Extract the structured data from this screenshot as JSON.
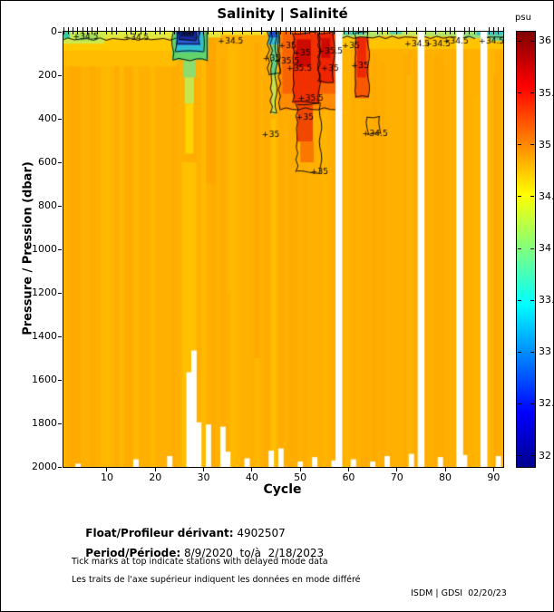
{
  "chart_data": {
    "type": "heatmap",
    "title": "Salinity | Salinité",
    "xlabel": "Cycle",
    "ylabel": "Pressure / Pression (dbar)",
    "x_range": [
      1,
      92
    ],
    "y_range": [
      0,
      2000
    ],
    "x_ticks": [
      10,
      20,
      30,
      40,
      50,
      60,
      70,
      80,
      90
    ],
    "y_ticks": [
      0,
      200,
      400,
      600,
      800,
      1000,
      1200,
      1400,
      1600,
      1800,
      2000
    ],
    "colorbar": {
      "unit": "psu",
      "ticks": [
        36,
        35.5,
        35,
        34.5,
        34,
        33.5,
        33,
        32.5,
        32
      ],
      "clim": [
        31.9,
        36.1
      ],
      "colormap": "jet",
      "stops": [
        [
          "0%",
          "#00008f"
        ],
        [
          "12.5%",
          "#0000ff"
        ],
        [
          "37.5%",
          "#00ffff"
        ],
        [
          "62.5%",
          "#ffff00"
        ],
        [
          "87.5%",
          "#ff0000"
        ],
        [
          "100%",
          "#800000"
        ]
      ]
    },
    "base": {
      "color": "#ffb000",
      "value_psu": 34.85
    },
    "missing_cycles": [
      58,
      75,
      83,
      88
    ],
    "shallow_profiles": [
      {
        "cycle": 4,
        "p": 1985
      },
      {
        "cycle": 16,
        "p": 1965
      },
      {
        "cycle": 23,
        "p": 1950
      },
      {
        "cycle": 27,
        "p": 1565
      },
      {
        "cycle": 28,
        "p": 1465
      },
      {
        "cycle": 29,
        "p": 1795
      },
      {
        "cycle": 31,
        "p": 1805
      },
      {
        "cycle": 34,
        "p": 1815
      },
      {
        "cycle": 35,
        "p": 1930
      },
      {
        "cycle": 39,
        "p": 1960
      },
      {
        "cycle": 44,
        "p": 1925
      },
      {
        "cycle": 46,
        "p": 1915
      },
      {
        "cycle": 50,
        "p": 1975
      },
      {
        "cycle": 53,
        "p": 1955
      },
      {
        "cycle": 57,
        "p": 1970
      },
      {
        "cycle": 61,
        "p": 1965
      },
      {
        "cycle": 65,
        "p": 1975
      },
      {
        "cycle": 68,
        "p": 1950
      },
      {
        "cycle": 73,
        "p": 1940
      },
      {
        "cycle": 79,
        "p": 1955
      },
      {
        "cycle": 84,
        "p": 1945
      },
      {
        "cycle": 91,
        "p": 1950
      }
    ],
    "patches": [
      {
        "c": [
          2.5,
          4.5
        ],
        "p": [
          30,
          2000
        ],
        "color": "#ffaa00"
      },
      {
        "c": [
          8.5,
          9.5
        ],
        "p": [
          50,
          2000
        ],
        "color": "#ffb600"
      },
      {
        "c": [
          13.5,
          15
        ],
        "p": [
          80,
          2000
        ],
        "color": "#ffac00"
      },
      {
        "c": [
          19,
          20
        ],
        "p": [
          60,
          2000
        ],
        "color": "#ffb800"
      },
      {
        "c": [
          25.5,
          28.5
        ],
        "p": [
          600,
          2000
        ],
        "color": "#ffc000"
      },
      {
        "c": [
          30.5,
          32.5
        ],
        "p": [
          30,
          700
        ],
        "color": "#ffa600"
      },
      {
        "c": [
          35,
          36
        ],
        "p": [
          40,
          1200
        ],
        "color": "#ffb800"
      },
      {
        "c": [
          40.5,
          41.5
        ],
        "p": [
          50,
          1500
        ],
        "color": "#ffa800"
      },
      {
        "c": [
          44,
          45
        ],
        "p": [
          400,
          2000
        ],
        "color": "#ffc000"
      },
      {
        "c": [
          59,
          60.5
        ],
        "p": [
          30,
          2000
        ],
        "color": "#ffb400"
      },
      {
        "c": [
          65,
          66
        ],
        "p": [
          100,
          2000
        ],
        "color": "#ffaa00"
      },
      {
        "c": [
          72,
          73
        ],
        "p": [
          200,
          2000
        ],
        "color": "#ffb600"
      },
      {
        "c": [
          79,
          80
        ],
        "p": [
          150,
          2000
        ],
        "color": "#ffac00"
      },
      {
        "c": [
          86,
          87
        ],
        "p": [
          300,
          2000
        ],
        "color": "#ffb400"
      },
      {
        "c": [
          90,
          91
        ],
        "p": [
          200,
          2000
        ],
        "color": "#ffaa00"
      },
      {
        "c": [
          0.5,
          24.5
        ],
        "p": [
          32,
          90
        ],
        "color": "#ffc800"
      },
      {
        "c": [
          0.5,
          24.5
        ],
        "p": [
          90,
          160
        ],
        "color": "#ffbc00"
      },
      {
        "c": [
          58.3,
          92.5
        ],
        "p": [
          24,
          80
        ],
        "color": "#ffc400"
      },
      {
        "c": [
          0.5,
          24.5
        ],
        "p": [
          0,
          32
        ],
        "color": "#e6e63c"
      },
      {
        "c": [
          0.5,
          9.5
        ],
        "p": [
          0,
          55
        ],
        "color": "#cdea4d"
      },
      {
        "c": [
          3.5,
          8
        ],
        "p": [
          8,
          42
        ],
        "color": "#a6e05a"
      },
      {
        "c": [
          0.5,
          2.3
        ],
        "p": [
          0,
          30
        ],
        "color": "#3cc8a0"
      },
      {
        "c": [
          10,
          22
        ],
        "p": [
          0,
          20
        ],
        "color": "#dcea44"
      },
      {
        "c": [
          29.5,
          33.5
        ],
        "p": [
          0,
          26
        ],
        "color": "#e6e63c"
      },
      {
        "c": [
          33.5,
          43
        ],
        "p": [
          0,
          16
        ],
        "color": "#f2dc28"
      },
      {
        "c": [
          23.5,
          31
        ],
        "p": [
          0,
          130
        ],
        "color": "#62d46a"
      },
      {
        "c": [
          24.2,
          30
        ],
        "p": [
          0,
          95
        ],
        "color": "#30bed0"
      },
      {
        "c": [
          24.6,
          29.2
        ],
        "p": [
          0,
          62
        ],
        "color": "#2a62e0"
      },
      {
        "c": [
          24.9,
          28.6
        ],
        "p": [
          0,
          40
        ],
        "color": "#1a2a9a"
      },
      {
        "c": [
          25.2,
          28.0
        ],
        "p": [
          0,
          22
        ],
        "color": "#0a1450"
      },
      {
        "c": [
          25.8,
          28.4
        ],
        "p": [
          130,
          210
        ],
        "color": "#8cdc6e"
      },
      {
        "c": [
          26.1,
          28.0
        ],
        "p": [
          210,
          330
        ],
        "color": "#c6e650"
      },
      {
        "c": [
          26.2,
          27.9
        ],
        "p": [
          330,
          560
        ],
        "color": "#ffd200"
      },
      {
        "c": [
          43.3,
          45.7
        ],
        "p": [
          0,
          60
        ],
        "color": "#34bcd8"
      },
      {
        "c": [
          43.6,
          45.3
        ],
        "p": [
          0,
          26
        ],
        "color": "#2050c8"
      },
      {
        "c": [
          43.9,
          45.1
        ],
        "p": [
          60,
          200
        ],
        "color": "#66d286"
      },
      {
        "c": [
          44.1,
          44.95
        ],
        "p": [
          200,
          380
        ],
        "color": "#c2e455"
      },
      {
        "c": [
          45.6,
          57.7
        ],
        "p": [
          0,
          360
        ],
        "color": "#ff8c00"
      },
      {
        "c": [
          46.3,
          57.5
        ],
        "p": [
          0,
          285
        ],
        "color": "#fa6400"
      },
      {
        "c": [
          48.5,
          54
        ],
        "p": [
          8,
          330
        ],
        "color": "#f13000"
      },
      {
        "c": [
          49.4,
          52.6
        ],
        "p": [
          330,
          505
        ],
        "color": "#f14800"
      },
      {
        "c": [
          50,
          52.8
        ],
        "p": [
          505,
          600
        ],
        "color": "#fa7800"
      },
      {
        "c": [
          53.8,
          57
        ],
        "p": [
          8,
          235
        ],
        "color": "#ee2400"
      },
      {
        "c": [
          49.2,
          52.2
        ],
        "p": [
          35,
          160
        ],
        "color": "#cc0a00"
      },
      {
        "c": [
          54.4,
          56.2
        ],
        "p": [
          30,
          120
        ],
        "color": "#cc0a00"
      },
      {
        "c": [
          61.3,
          64.2
        ],
        "p": [
          8,
          305
        ],
        "color": "#f85800"
      },
      {
        "c": [
          61.8,
          63.6
        ],
        "p": [
          25,
          210
        ],
        "color": "#ee2800"
      },
      {
        "c": [
          58.3,
          66.5
        ],
        "p": [
          0,
          24
        ],
        "color": "#b4e468"
      },
      {
        "c": [
          59,
          63.5
        ],
        "p": [
          0,
          14
        ],
        "color": "#46c8b4"
      },
      {
        "c": [
          66.5,
          74.5
        ],
        "p": [
          0,
          20
        ],
        "color": "#c8e85a"
      },
      {
        "c": [
          68.5,
          71
        ],
        "p": [
          0,
          11
        ],
        "color": "#52ccb0"
      },
      {
        "c": [
          75.5,
          82.5
        ],
        "p": [
          0,
          22
        ],
        "color": "#b4e468"
      },
      {
        "c": [
          83.5,
          92.5
        ],
        "p": [
          0,
          30
        ],
        "color": "#9ade74"
      },
      {
        "c": [
          86.5,
          92.5
        ],
        "p": [
          0,
          16
        ],
        "color": "#3ec4c0"
      },
      {
        "c": [
          89.5,
          92.5
        ],
        "p": [
          16,
          42
        ],
        "color": "#74d694"
      }
    ],
    "contours": [
      {
        "type": "hline",
        "c": [
          0.6,
          24.4
        ],
        "p": [
          34,
          34
        ]
      },
      {
        "type": "box",
        "c": [
          23.6,
          30.9
        ],
        "p": [
          0,
          128
        ]
      },
      {
        "type": "box",
        "c": [
          24.3,
          29.9
        ],
        "p": [
          0,
          93
        ]
      },
      {
        "type": "box",
        "c": [
          24.7,
          29.1
        ],
        "p": [
          0,
          60
        ]
      },
      {
        "type": "box",
        "c": [
          25.0,
          28.5
        ],
        "p": [
          0,
          38
        ]
      },
      {
        "type": "box",
        "c": [
          43.4,
          45.6
        ],
        "p": [
          0,
          195
        ]
      },
      {
        "type": "box",
        "c": [
          44.0,
          45.0
        ],
        "p": [
          0,
          375
        ]
      },
      {
        "type": "box",
        "c": [
          45.7,
          57.6
        ],
        "p": [
          0,
          355
        ]
      },
      {
        "type": "box",
        "c": [
          49.3,
          54.2
        ],
        "p": [
          330,
          645
        ]
      },
      {
        "type": "box",
        "c": [
          48.6,
          53.9
        ],
        "p": [
          5,
          325
        ]
      },
      {
        "type": "box",
        "c": [
          53.9,
          56.9
        ],
        "p": [
          5,
          230
        ]
      },
      {
        "type": "box",
        "c": [
          61.4,
          64.1
        ],
        "p": [
          5,
          300
        ]
      },
      {
        "type": "box",
        "c": [
          63.9,
          66.5
        ],
        "p": [
          390,
          470
        ]
      },
      {
        "type": "hline",
        "c": [
          58.4,
          86.2
        ],
        "p": [
          26,
          26
        ]
      },
      {
        "type": "hline",
        "c": [
          88.6,
          92.4
        ],
        "p": [
          30,
          30
        ]
      }
    ],
    "contour_labels": [
      {
        "text": "34.5",
        "c": 5,
        "p": 18
      },
      {
        "text": "34.5",
        "c": 15.5,
        "p": 22
      },
      {
        "text": "34.5",
        "c": 35,
        "p": 40
      },
      {
        "text": "35",
        "c": 44.3,
        "p": 120
      },
      {
        "text": "35",
        "c": 44.1,
        "p": 470
      },
      {
        "text": "35.5",
        "c": 46.6,
        "p": 130
      },
      {
        "text": "35",
        "c": 47.6,
        "p": 60
      },
      {
        "text": "35.5",
        "c": 49.2,
        "p": 165
      },
      {
        "text": "35",
        "c": 50.6,
        "p": 95
      },
      {
        "text": "35.5",
        "c": 51.6,
        "p": 300
      },
      {
        "text": "35",
        "c": 51.2,
        "p": 390
      },
      {
        "text": "35",
        "c": 54.2,
        "p": 640
      },
      {
        "text": "35.5",
        "c": 55.6,
        "p": 85
      },
      {
        "text": "35",
        "c": 56.4,
        "p": 165
      },
      {
        "text": "35",
        "c": 60.7,
        "p": 60
      },
      {
        "text": "35",
        "c": 62.6,
        "p": 150
      },
      {
        "text": "34.5",
        "c": 64.9,
        "p": 465
      },
      {
        "text": "34.5",
        "c": 73.6,
        "p": 50
      },
      {
        "text": "34.5",
        "c": 77.9,
        "p": 52
      },
      {
        "text": "34.5",
        "c": 81.6,
        "p": 40
      },
      {
        "text": "34.5",
        "c": 89,
        "p": 38
      }
    ],
    "delayed_mode_cycles": [
      1,
      2,
      3,
      4,
      5,
      6,
      7,
      8,
      10,
      11,
      12,
      14,
      15,
      16,
      17,
      18,
      20,
      21,
      22,
      24,
      25,
      26,
      27,
      28,
      29,
      30,
      31,
      32,
      34,
      36,
      38,
      40,
      42,
      44,
      45,
      46,
      47,
      48,
      49,
      50,
      51,
      52,
      53,
      54,
      55,
      56,
      57,
      59,
      60,
      61,
      62,
      63,
      64,
      66,
      67,
      68,
      70,
      72,
      74,
      76,
      78,
      80,
      81,
      82,
      84,
      85,
      86,
      89,
      90,
      91,
      92
    ]
  },
  "footer": {
    "float_label": "Float/Profileur dérivant:",
    "float_value": " 4902507",
    "period_label": "Period/Période:",
    "period_value": " 8/9/2020  to/à  2/18/2023",
    "note_en": "Tick marks at top indicate stations with delayed mode data",
    "note_fr": "Les traits de l'axe supérieur indiquent les données en mode différé",
    "credit": "ISDM | GDSI  02/20/23"
  }
}
